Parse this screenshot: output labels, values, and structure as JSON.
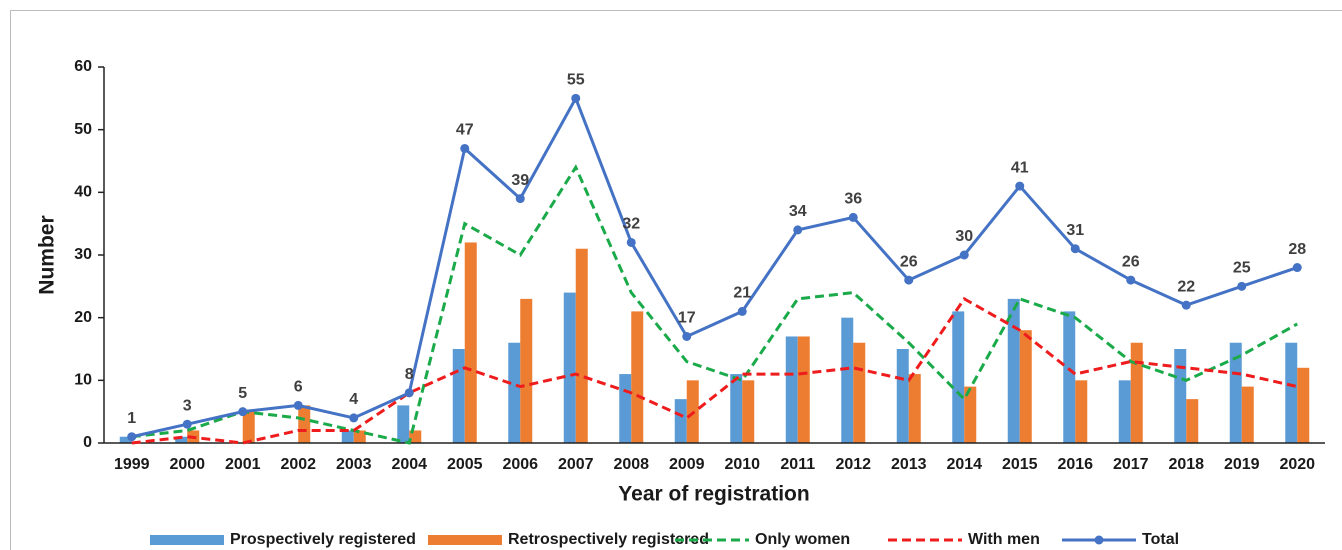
{
  "chart_data": {
    "type": "bar_line",
    "xlabel": "Year of registration",
    "ylabel": "Number",
    "categories": [
      "1999",
      "2000",
      "2001",
      "2002",
      "2003",
      "2004",
      "2005",
      "2006",
      "2007",
      "2008",
      "2009",
      "2010",
      "2011",
      "2012",
      "2013",
      "2014",
      "2015",
      "2016",
      "2017",
      "2018",
      "2019",
      "2020"
    ],
    "ylim": [
      0,
      60
    ],
    "yticks": [
      0,
      10,
      20,
      30,
      40,
      50,
      60
    ],
    "series": [
      {
        "name": "Prospectively registered",
        "kind": "bar",
        "color": "#5b9bd5",
        "values": [
          1,
          1,
          0,
          0,
          2,
          6,
          15,
          16,
          24,
          11,
          7,
          11,
          17,
          20,
          15,
          21,
          23,
          21,
          10,
          15,
          16,
          16
        ]
      },
      {
        "name": "Retrospectively  registered",
        "kind": "bar",
        "color": "#ed7d31",
        "values": [
          0,
          2,
          5,
          6,
          2,
          2,
          32,
          23,
          31,
          21,
          10,
          10,
          17,
          16,
          11,
          9,
          18,
          10,
          16,
          7,
          9,
          12
        ]
      },
      {
        "name": "Only women",
        "kind": "dashed",
        "color": "#1aaa4a",
        "values": [
          1,
          2,
          5,
          4,
          2,
          0,
          35,
          30,
          44,
          24,
          13,
          10,
          23,
          24,
          16,
          7,
          23,
          20,
          13,
          10,
          14,
          19
        ]
      },
      {
        "name": "With men",
        "kind": "dashed",
        "color": "#ee1c1c",
        "values": [
          0,
          1,
          0,
          2,
          2,
          8,
          12,
          9,
          11,
          8,
          4,
          11,
          11,
          12,
          10,
          23,
          18,
          11,
          13,
          12,
          11,
          9
        ]
      },
      {
        "name": "Total",
        "kind": "line",
        "color": "#4472c4",
        "values": [
          1,
          3,
          5,
          6,
          4,
          8,
          47,
          39,
          55,
          32,
          17,
          21,
          34,
          36,
          26,
          30,
          41,
          31,
          26,
          22,
          25,
          28
        ]
      }
    ]
  }
}
